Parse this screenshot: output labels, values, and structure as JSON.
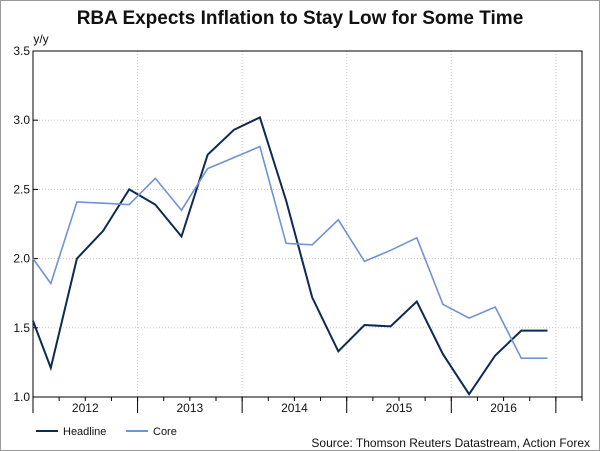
{
  "chart_data": {
    "type": "line",
    "title": "RBA Expects Inflation to Stay Low for Some Time",
    "ylabel": "y/y",
    "xlabel": "",
    "ylim": [
      1.0,
      3.5
    ],
    "yticks": [
      1.0,
      1.5,
      2.0,
      2.5,
      3.0,
      3.5
    ],
    "ytick_labels": [
      "1.0",
      "1.5",
      "2.0",
      "2.5",
      "3.0",
      "3.5"
    ],
    "x_range": [
      2011.5,
      2016.75
    ],
    "year_labels": [
      {
        "label": "2012",
        "x": 2012.0
      },
      {
        "label": "2013",
        "x": 2013.0
      },
      {
        "label": "2014",
        "x": 2014.0
      },
      {
        "label": "2015",
        "x": 2015.0
      },
      {
        "label": "2016",
        "x": 2016.0
      }
    ],
    "year_boundaries": [
      2011.5,
      2012.5,
      2013.5,
      2014.5,
      2015.5,
      2016.5
    ],
    "grid": true,
    "legend_position": "bottom-left",
    "source": "Source: Thomson Reuters Datastream, Action Forex",
    "series": [
      {
        "name": "Headline",
        "color": "#0d2a52",
        "x": [
          2011.5,
          2011.67,
          2011.92,
          2012.17,
          2012.42,
          2012.67,
          2012.92,
          2013.17,
          2013.42,
          2013.67,
          2013.92,
          2014.17,
          2014.42,
          2014.67,
          2014.92,
          2015.17,
          2015.42,
          2015.67,
          2015.92,
          2016.17,
          2016.42
        ],
        "values": [
          1.55,
          1.21,
          2.0,
          2.2,
          2.5,
          2.39,
          2.16,
          2.75,
          2.93,
          3.02,
          2.42,
          1.72,
          1.33,
          1.52,
          1.51,
          1.69,
          1.31,
          1.02,
          1.3,
          1.48,
          1.48
        ]
      },
      {
        "name": "Core",
        "color": "#6f93d3",
        "x": [
          2011.5,
          2011.67,
          2011.92,
          2012.17,
          2012.42,
          2012.67,
          2012.92,
          2013.17,
          2013.42,
          2013.67,
          2013.92,
          2014.17,
          2014.42,
          2014.67,
          2014.92,
          2015.17,
          2015.42,
          2015.67,
          2015.92,
          2016.17,
          2016.42
        ],
        "values": [
          2.0,
          1.82,
          2.41,
          2.4,
          2.39,
          2.58,
          2.35,
          2.65,
          2.73,
          2.81,
          2.11,
          2.1,
          2.28,
          1.98,
          2.06,
          2.15,
          1.67,
          1.57,
          1.65,
          1.28,
          1.28
        ]
      }
    ]
  }
}
